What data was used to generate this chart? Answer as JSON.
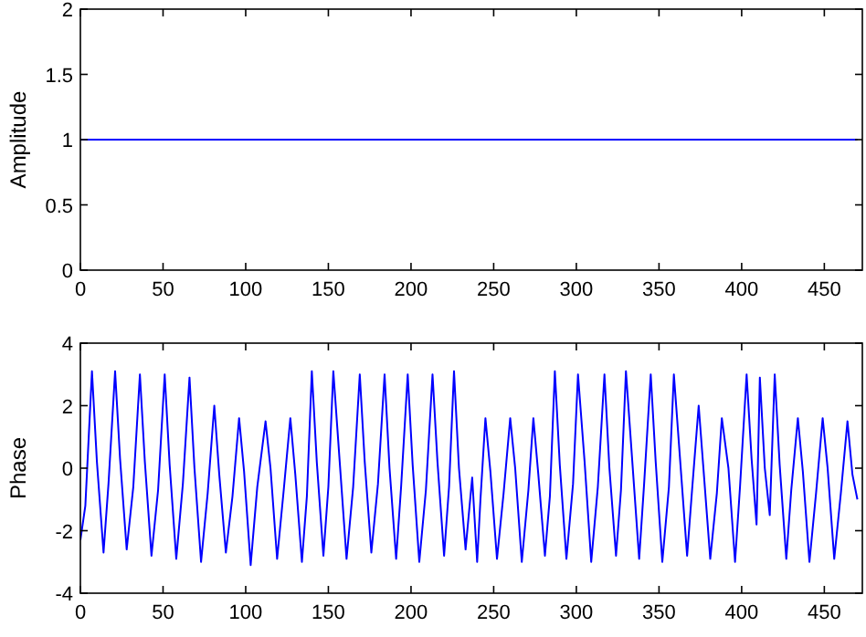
{
  "chart_data": [
    {
      "type": "line",
      "ylabel": "Amplitude",
      "xlim": [
        0,
        473
      ],
      "ylim": [
        0,
        2
      ],
      "xticks": [
        0,
        50,
        100,
        150,
        200,
        250,
        300,
        350,
        400,
        450
      ],
      "yticks": [
        0,
        0.5,
        1,
        1.5,
        2
      ],
      "grid": false,
      "series": [
        {
          "color": "#0000ff",
          "x": [
            0,
            470
          ],
          "values": [
            1,
            1
          ]
        }
      ]
    },
    {
      "type": "line",
      "ylabel": "Phase",
      "xlim": [
        0,
        473
      ],
      "ylim": [
        -4,
        4
      ],
      "xticks": [
        0,
        50,
        100,
        150,
        200,
        250,
        300,
        350,
        400,
        450
      ],
      "yticks": [
        -4,
        -2,
        0,
        2,
        4
      ],
      "grid": false,
      "series": [
        {
          "color": "#0000ff",
          "x": [
            0,
            3,
            7,
            10,
            14,
            17,
            21,
            24,
            28,
            32,
            36,
            39,
            43,
            47,
            51,
            54,
            58,
            62,
            66,
            69,
            73,
            77,
            81,
            84,
            88,
            92,
            96,
            99,
            103,
            107,
            112,
            115,
            119,
            123,
            127,
            130,
            134,
            137,
            140,
            143,
            147,
            150,
            153,
            157,
            161,
            165,
            169,
            172,
            176,
            180,
            184,
            187,
            191,
            194,
            198,
            201,
            205,
            209,
            213,
            216,
            220,
            223,
            226,
            229,
            233,
            237,
            240,
            242,
            245,
            248,
            252,
            256,
            260,
            263,
            267,
            271,
            274,
            277,
            281,
            284,
            287,
            290,
            294,
            298,
            301,
            305,
            309,
            313,
            317,
            320,
            324,
            327,
            330,
            334,
            338,
            341,
            345,
            348,
            352,
            356,
            359,
            363,
            367,
            370,
            374,
            377,
            381,
            385,
            388,
            392,
            396,
            399,
            403,
            406,
            409,
            411,
            414,
            417,
            420,
            423,
            427,
            430,
            434,
            437,
            441,
            445,
            449,
            452,
            456,
            460,
            464,
            467,
            470
          ],
          "values": [
            -2.3,
            -1.2,
            3.1,
            0.2,
            -2.7,
            -0.5,
            3.1,
            0.3,
            -2.6,
            -0.6,
            3.0,
            0.2,
            -2.8,
            -0.7,
            3.0,
            0.1,
            -2.9,
            -0.5,
            2.9,
            0.0,
            -3.0,
            -0.8,
            2.0,
            -0.2,
            -2.7,
            -0.9,
            1.6,
            -0.1,
            -3.1,
            -0.6,
            1.5,
            0.0,
            -2.9,
            -0.7,
            1.6,
            -0.2,
            -3.0,
            -0.9,
            3.1,
            0.2,
            -2.8,
            -0.6,
            3.1,
            0.1,
            -2.9,
            -0.6,
            3.0,
            0.2,
            -2.7,
            -0.5,
            3.0,
            0.0,
            -2.9,
            -0.6,
            3.0,
            0.1,
            -3.0,
            -0.7,
            3.0,
            0.2,
            -2.8,
            -0.6,
            3.1,
            0.0,
            -2.6,
            -0.3,
            -3.0,
            -1.0,
            1.6,
            -0.1,
            -2.9,
            -0.8,
            1.6,
            0.0,
            -3.0,
            -0.7,
            1.6,
            -0.2,
            -2.8,
            -0.9,
            3.1,
            0.1,
            -2.9,
            -0.5,
            3.0,
            0.2,
            -3.0,
            -0.6,
            3.0,
            0.0,
            -2.8,
            -0.7,
            3.1,
            0.1,
            -2.9,
            -0.5,
            3.0,
            0.2,
            -3.0,
            -0.6,
            3.0,
            0.1,
            -2.8,
            -0.7,
            2.0,
            -0.1,
            -2.9,
            -0.8,
            1.6,
            0.0,
            -3.0,
            -0.6,
            3.0,
            0.3,
            -1.8,
            2.9,
            0.0,
            -1.5,
            3.0,
            0.1,
            -2.9,
            -0.7,
            1.6,
            -0.1,
            -3.0,
            -0.8,
            1.6,
            0.0,
            -2.9,
            -0.8,
            1.5,
            -0.2,
            -1.0
          ]
        }
      ]
    }
  ]
}
